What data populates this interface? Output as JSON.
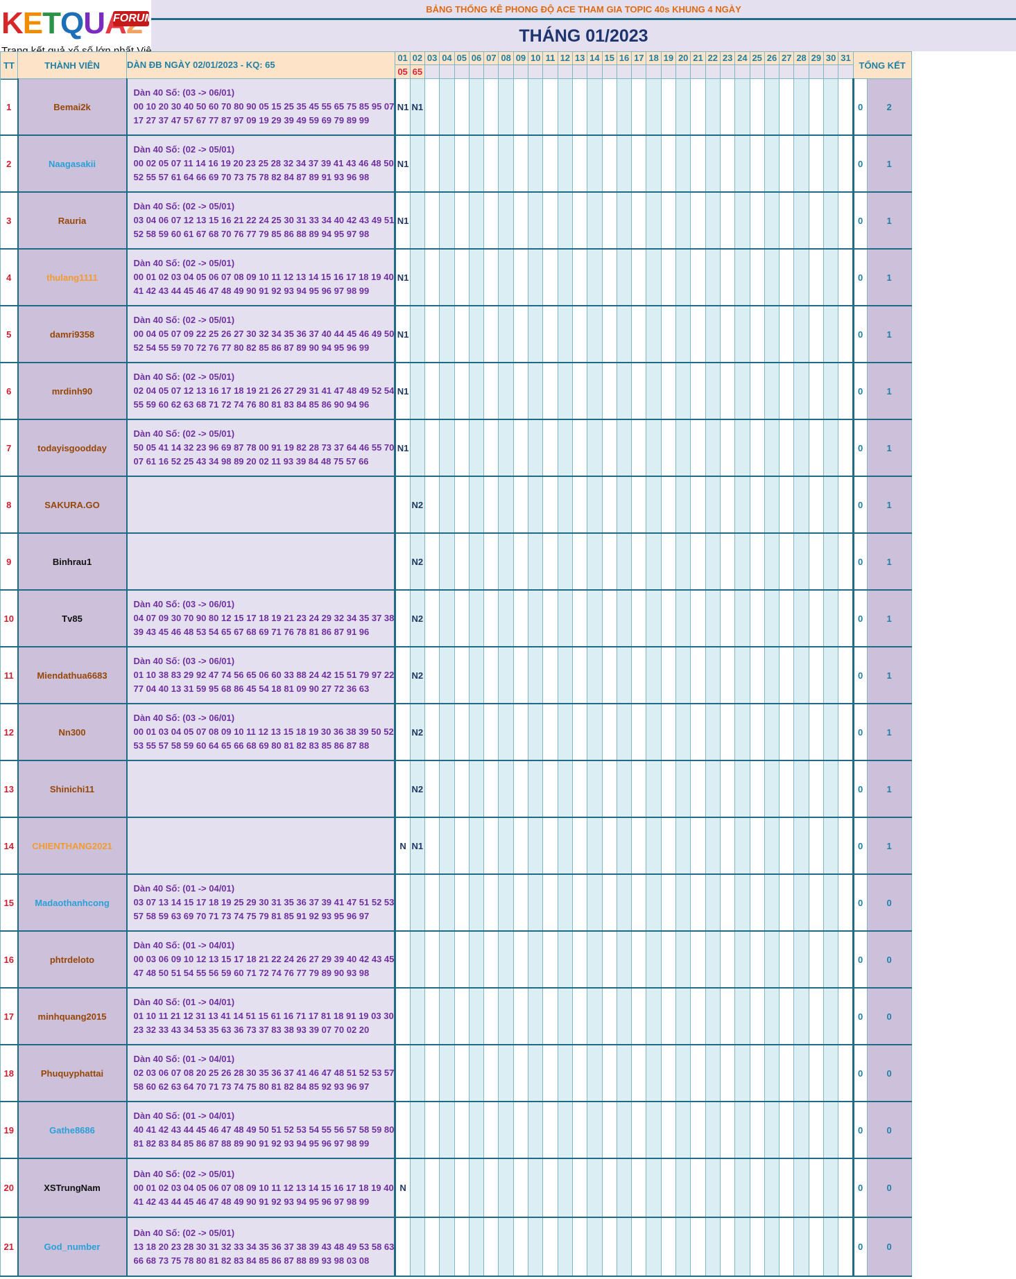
{
  "logo": {
    "brand": "KETQUA2",
    "forum": "FORUM",
    "tagline": "Trang kết quả xổ số lớn nhất Việt Nam"
  },
  "banner": "BẢNG THỐNG KÊ PHONG ĐỘ ACE THAM GIA TOPIC 40s KHUNG 4 NGÀY",
  "month_title": "THÁNG 01/2023",
  "headers": {
    "tt": "TT",
    "member": "THÀNH VIÊN",
    "dan": "DÀN ĐB NGÀY 02/01/2023 - KQ: 65",
    "total": "TỔNG KẾT"
  },
  "days": [
    "01",
    "02",
    "03",
    "04",
    "05",
    "06",
    "07",
    "08",
    "09",
    "10",
    "11",
    "12",
    "13",
    "14",
    "15",
    "16",
    "17",
    "18",
    "19",
    "20",
    "21",
    "22",
    "23",
    "24",
    "25",
    "26",
    "27",
    "28",
    "29",
    "30",
    "31"
  ],
  "results": [
    "05",
    "65",
    "",
    "",
    "",
    "",
    "",
    "",
    "",
    "",
    "",
    "",
    "",
    "",
    "",
    "",
    "",
    "",
    "",
    "",
    "",
    "",
    "",
    "",
    "",
    "",
    "",
    "",
    "",
    "",
    ""
  ],
  "rows": [
    {
      "tt": "1",
      "name": "Bemai2k",
      "color": "brown",
      "l1": "Dàn 40 Số: (03 -> 06/01)",
      "l2": "00 10 20 30 40 50 60 70 80 90 05 15 25 35 45 55 65 75 85 95 07",
      "l3": "17 27 37 47 57 67 77 87 97 09 19 29 39 49 59 69 79 89 99",
      "d1": "N1",
      "d2": "N1",
      "score": "0",
      "total": "2"
    },
    {
      "tt": "2",
      "name": "Naagasakii",
      "color": "blue",
      "l1": "Dàn 40 Số: (02 -> 05/01)",
      "l2": "00 02 05 07 11 14 16 19 20 23 25 28 32 34 37 39 41 43 46 48 50",
      "l3": "52 55 57 61 64 66 69 70 73 75 78 82 84 87 89 91 93 96 98",
      "d1": "N1",
      "d2": "",
      "score": "0",
      "total": "1"
    },
    {
      "tt": "3",
      "name": "Rauria",
      "color": "brown",
      "l1": "Dàn 40 Số: (02 -> 05/01)",
      "l2": "03 04 06 07 12 13 15 16 21 22 24 25 30 31 33 34 40 42 43 49 51",
      "l3": "52 58 59 60 61 67 68 70 76 77 79 85 86 88 89 94 95 97 98",
      "d1": "N1",
      "d2": "",
      "score": "0",
      "total": "1"
    },
    {
      "tt": "4",
      "name": "thulang1111",
      "color": "orange",
      "l1": "Dàn 40 Số: (02 -> 05/01)",
      "l2": "00 01 02 03 04 05 06 07 08 09 10 11 12 13 14 15 16 17 18 19 40",
      "l3": "41 42 43 44 45 46 47 48 49 90 91 92 93 94 95 96 97 98 99",
      "d1": "N1",
      "d2": "",
      "score": "0",
      "total": "1"
    },
    {
      "tt": "5",
      "name": "damri9358",
      "color": "brown",
      "l1": "Dàn 40 Số: (02 -> 05/01)",
      "l2": "00 04 05 07 09 22 25 26 27 30 32 34 35 36 37 40 44 45 46 49 50",
      "l3": "52 54 55 59 70 72 76 77 80 82 85 86 87 89 90 94 95 96 99",
      "d1": "N1",
      "d2": "",
      "score": "0",
      "total": "1"
    },
    {
      "tt": "6",
      "name": "mrdinh90",
      "color": "brown",
      "l1": "Dàn 40 Số: (02 -> 05/01)",
      "l2": "02 04 05 07 12 13 16 17 18 19 21 26 27 29 31 41 47 48 49 52 54",
      "l3": "55 59 60 62 63 68 71 72 74 76 80 81 83 84 85 86 90 94 96",
      "d1": "N1",
      "d2": "",
      "score": "0",
      "total": "1"
    },
    {
      "tt": "7",
      "name": "todayisgoodday",
      "color": "brown",
      "l1": "Dàn 40 Số: (02 -> 05/01)",
      "l2": "50 05 41 14 32 23 96 69 87 78 00 91 19 82 28 73 37 64 46 55 70",
      "l3": "07 61 16 52 25 43 34 98 89 20 02 11 93 39 84 48 75 57 66",
      "d1": "N1",
      "d2": "",
      "score": "0",
      "total": "1"
    },
    {
      "tt": "8",
      "name": "SAKURA.GO",
      "color": "brown",
      "l1": "",
      "l2": "",
      "l3": "",
      "d1": "",
      "d2": "N2",
      "score": "0",
      "total": "1"
    },
    {
      "tt": "9",
      "name": "Binhrau1",
      "color": "black",
      "l1": "",
      "l2": "",
      "l3": "",
      "d1": "",
      "d2": "N2",
      "score": "0",
      "total": "1"
    },
    {
      "tt": "10",
      "name": "Tv85",
      "color": "black",
      "l1": "Dàn 40 Số: (03 -> 06/01)",
      "l2": "04 07 09 30 70 90 80 12 15 17 18 19 21 23 24 29 32 34 35 37 38",
      "l3": "39 43 45 46 48 53 54 65 67 68 69 71 76 78 81 86 87 91 96",
      "d1": "",
      "d2": "N2",
      "score": "0",
      "total": "1"
    },
    {
      "tt": "11",
      "name": "Miendathua6683",
      "color": "brown",
      "l1": "Dàn 40 Số: (03 -> 06/01)",
      "l2": "01 10 38 83 29 92 47 74 56 65 06 60 33 88 24 42 15 51 79 97 22",
      "l3": "77 04 40 13 31 59 95 68 86 45 54 18 81 09 90 27 72 36 63",
      "d1": "",
      "d2": "N2",
      "score": "0",
      "total": "1"
    },
    {
      "tt": "12",
      "name": "Nn300",
      "color": "brown",
      "l1": "Dàn 40 Số: (03 -> 06/01)",
      "l2": "00 01 03 04 05 07 08 09 10 11 12 13 15 18 19 30 36 38 39 50 52",
      "l3": "53 55 57 58 59 60 64 65 66 68 69 80 81 82 83 85 86 87 88",
      "d1": "",
      "d2": "N2",
      "score": "0",
      "total": "1"
    },
    {
      "tt": "13",
      "name": "Shinichi11",
      "color": "brown",
      "l1": "",
      "l2": "",
      "l3": "",
      "d1": "",
      "d2": "N2",
      "score": "0",
      "total": "1"
    },
    {
      "tt": "14",
      "name": "CHIENTHANG2021",
      "color": "orange",
      "l1": "",
      "l2": "",
      "l3": "",
      "d1": "N",
      "d2": "N1",
      "score": "0",
      "total": "1"
    },
    {
      "tt": "15",
      "name": "Madaothanhcong",
      "color": "blue",
      "l1": "Dàn 40 Số: (01 -> 04/01)",
      "l2": "03 07 13 14 15 17 18 19 25 29 30 31 35 36 37 39 41 47 51 52 53",
      "l3": "57 58 59 63 69 70 71 73 74 75 79 81 85 91 92 93 95 96 97",
      "d1": "",
      "d2": "",
      "score": "0",
      "total": "0"
    },
    {
      "tt": "16",
      "name": "phtrdeloto",
      "color": "brown",
      "l1": "Dàn 40 Số: (01 -> 04/01)",
      "l2": "00 03 06 09 10 12 13 15 17 18 21 22 24 26 27 29 39 40 42 43 45",
      "l3": "47 48 50 51 54 55 56 59 60 71 72 74 76 77 79 89 90 93 98",
      "d1": "",
      "d2": "",
      "score": "0",
      "total": "0"
    },
    {
      "tt": "17",
      "name": "minhquang2015",
      "color": "brown",
      "l1": "Dàn 40 Số: (01 -> 04/01)",
      "l2": "01 10 11 21 12 31 13 41 14 51 15 61 16 71 17 81 18 91 19 03 30",
      "l3": "23 32 33 43 34 53 35 63 36 73 37 83 38 93 39 07 70 02 20",
      "d1": "",
      "d2": "",
      "score": "0",
      "total": "0"
    },
    {
      "tt": "18",
      "name": "Phuquyphattai",
      "color": "brown",
      "l1": "Dàn 40 Số: (01 -> 04/01)",
      "l2": "02 03 06 07 08 20 25 26 28 30 35 36 37 41 46 47 48 51 52 53 57",
      "l3": "58 60 62 63 64 70 71 73 74 75 80 81 82 84 85 92 93 96 97",
      "d1": "",
      "d2": "",
      "score": "0",
      "total": "0"
    },
    {
      "tt": "19",
      "name": "Gathe8686",
      "color": "blue",
      "l1": "Dàn 40 Số: (01 -> 04/01)",
      "l2": "40 41 42 43 44 45 46 47 48 49 50 51 52 53 54 55 56 57 58 59 80",
      "l3": "81 82 83 84 85 86 87 88 89 90 91 92 93 94 95 96 97 98 99",
      "d1": "",
      "d2": "",
      "score": "0",
      "total": "0"
    },
    {
      "tt": "20",
      "name": "XSTrungNam",
      "color": "black",
      "l1": "Dàn 40 Số: (02 -> 05/01)",
      "l2": "00 01 02 03 04 05 06 07 08 09 10 11 12 13 14 15 16 17 18 19 40",
      "l3": "41 42 43 44 45 46 47 48 49 90 91 92 93 94 95 96 97 98 99",
      "d1": "N",
      "d2": "",
      "score": "0",
      "total": "0"
    },
    {
      "tt": "21",
      "name": "God_number",
      "color": "blue",
      "l1": "Dàn 40 Số: (02 -> 05/01)",
      "l2": "13 18 20 23 28 30 31 32 33 34 35 36 37 38 39 43 48 49 53 58 63",
      "l3": "66 68 73 75 78 80 81 82 83 84 85 86 87 88 89 93 98 03 08",
      "d1": "",
      "d2": "",
      "score": "0",
      "total": "0"
    }
  ]
}
